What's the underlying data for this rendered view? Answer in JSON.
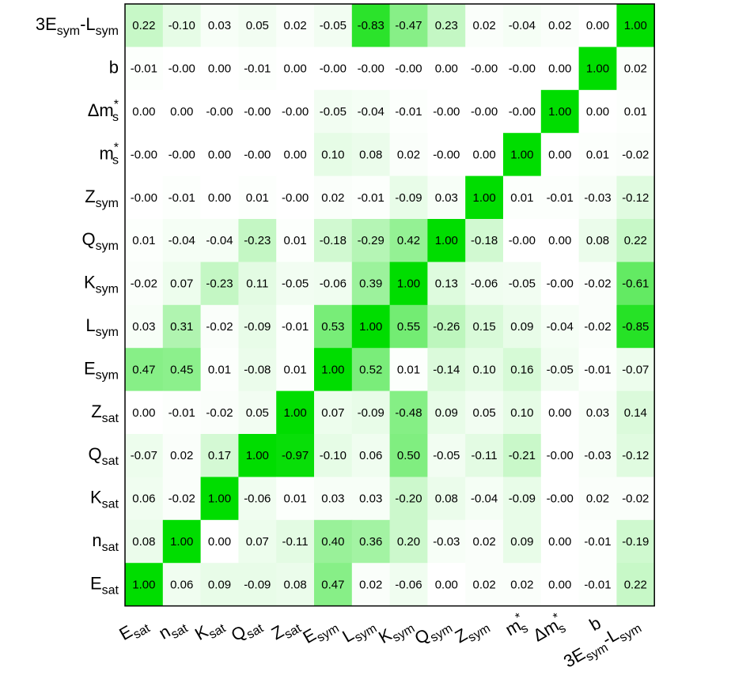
{
  "chart_data": {
    "type": "heatmap",
    "title": "",
    "xlabel": "",
    "ylabel": "",
    "colors": {
      "low": "#ffffff",
      "high": "#00dd00",
      "text": "#000000",
      "frame": "#000000"
    },
    "value_format": "two-decimals",
    "x_labels": [
      {
        "base": "E",
        "sub": "sat"
      },
      {
        "base": "n",
        "sub": "sat"
      },
      {
        "base": "K",
        "sub": "sat"
      },
      {
        "base": "Q",
        "sub": "sat"
      },
      {
        "base": "Z",
        "sub": "sat"
      },
      {
        "base": "E",
        "sub": "sym"
      },
      {
        "base": "L",
        "sub": "sym"
      },
      {
        "base": "K",
        "sub": "sym"
      },
      {
        "base": "Q",
        "sub": "sym"
      },
      {
        "base": "Z",
        "sub": "sym"
      },
      {
        "base": "m",
        "sub": "s",
        "sup": "*"
      },
      {
        "base": "Δm",
        "sub": "s",
        "sup": "*"
      },
      {
        "base": "b"
      },
      {
        "parts": [
          [
            "3E",
            ""
          ],
          [
            "sym",
            "sub"
          ],
          [
            "-L",
            ""
          ],
          [
            "sym",
            "sub"
          ]
        ]
      }
    ],
    "y_labels": [
      {
        "base": "E",
        "sub": "sat"
      },
      {
        "base": "n",
        "sub": "sat"
      },
      {
        "base": "K",
        "sub": "sat"
      },
      {
        "base": "Q",
        "sub": "sat"
      },
      {
        "base": "Z",
        "sub": "sat"
      },
      {
        "base": "E",
        "sub": "sym"
      },
      {
        "base": "L",
        "sub": "sym"
      },
      {
        "base": "K",
        "sub": "sym"
      },
      {
        "base": "Q",
        "sub": "sym"
      },
      {
        "base": "Z",
        "sub": "sym"
      },
      {
        "base": "m",
        "sub": "s",
        "sup": "*"
      },
      {
        "base": "Δm",
        "sub": "s",
        "sup": "*"
      },
      {
        "base": "b"
      },
      {
        "parts": [
          [
            "3E",
            ""
          ],
          [
            "sym",
            "sub"
          ],
          [
            "-L",
            ""
          ],
          [
            "sym",
            "sub"
          ]
        ]
      }
    ],
    "rows": [
      {
        "y": "3Esym-Lsym",
        "values": [
          "0.22",
          "-0.10",
          "0.03",
          "0.05",
          "0.02",
          "-0.05",
          "-0.83",
          "-0.47",
          "0.23",
          "0.02",
          "-0.04",
          "0.02",
          "0.00",
          "1.00"
        ]
      },
      {
        "y": "b",
        "values": [
          "-0.01",
          "-0.00",
          "0.00",
          "-0.01",
          "0.00",
          "-0.00",
          "-0.00",
          "-0.00",
          "0.00",
          "-0.00",
          "-0.00",
          "0.00",
          "1.00",
          "0.02"
        ]
      },
      {
        "y": "Δm*s",
        "values": [
          "0.00",
          "0.00",
          "-0.00",
          "-0.00",
          "-0.00",
          "-0.05",
          "-0.04",
          "-0.01",
          "-0.00",
          "-0.00",
          "-0.00",
          "1.00",
          "0.00",
          "0.01"
        ]
      },
      {
        "y": "m*s",
        "values": [
          "-0.00",
          "-0.00",
          "0.00",
          "-0.00",
          "0.00",
          "0.10",
          "0.08",
          "0.02",
          "-0.00",
          "0.00",
          "1.00",
          "0.00",
          "0.01",
          "-0.02"
        ]
      },
      {
        "y": "Zsym",
        "values": [
          "-0.00",
          "-0.01",
          "0.00",
          "0.01",
          "-0.00",
          "0.02",
          "-0.01",
          "-0.09",
          "0.03",
          "1.00",
          "0.01",
          "-0.01",
          "-0.03",
          "-0.12"
        ]
      },
      {
        "y": "Qsym",
        "values": [
          "0.01",
          "-0.04",
          "-0.04",
          "-0.23",
          "0.01",
          "-0.18",
          "-0.29",
          "0.42",
          "1.00",
          "-0.18",
          "-0.00",
          "0.00",
          "0.08",
          "0.22"
        ]
      },
      {
        "y": "Ksym",
        "values": [
          "-0.02",
          "0.07",
          "-0.23",
          "0.11",
          "-0.05",
          "-0.06",
          "0.39",
          "1.00",
          "0.13",
          "-0.06",
          "-0.05",
          "-0.00",
          "-0.02",
          "-0.61"
        ]
      },
      {
        "y": "Lsym",
        "values": [
          "0.03",
          "0.31",
          "-0.02",
          "-0.09",
          "-0.01",
          "0.53",
          "1.00",
          "0.55",
          "-0.26",
          "0.15",
          "0.09",
          "-0.04",
          "-0.02",
          "-0.85"
        ]
      },
      {
        "y": "Esym",
        "values": [
          "0.47",
          "0.45",
          "0.01",
          "-0.08",
          "0.01",
          "1.00",
          "0.52",
          "0.01",
          "-0.14",
          "0.10",
          "0.16",
          "-0.05",
          "-0.01",
          "-0.07"
        ]
      },
      {
        "y": "Zsat",
        "values": [
          "0.00",
          "-0.01",
          "-0.02",
          "0.05",
          "1.00",
          "0.07",
          "-0.09",
          "-0.48",
          "0.09",
          "0.05",
          "0.10",
          "0.00",
          "0.03",
          "0.14"
        ]
      },
      {
        "y": "Qsat",
        "values": [
          "-0.07",
          "0.02",
          "0.17",
          "1.00",
          "-0.97",
          "-0.10",
          "0.06",
          "0.50",
          "-0.05",
          "-0.11",
          "-0.21",
          "-0.00",
          "-0.03",
          "-0.12"
        ]
      },
      {
        "y": "Ksat",
        "values": [
          "0.06",
          "-0.02",
          "1.00",
          "-0.06",
          "0.01",
          "0.03",
          "0.03",
          "-0.20",
          "0.08",
          "-0.04",
          "-0.09",
          "-0.00",
          "0.02",
          "-0.02"
        ]
      },
      {
        "y": "nsat",
        "values": [
          "0.08",
          "1.00",
          "0.00",
          "0.07",
          "-0.11",
          "0.40",
          "0.36",
          "0.20",
          "-0.03",
          "0.02",
          "0.09",
          "0.00",
          "-0.01",
          "-0.19"
        ]
      },
      {
        "y": "Esat",
        "values": [
          "1.00",
          "0.06",
          "0.09",
          "-0.09",
          "0.08",
          "0.47",
          "0.02",
          "-0.06",
          "0.00",
          "0.02",
          "0.02",
          "0.00",
          "-0.01",
          "0.22"
        ]
      }
    ],
    "grid": false,
    "legend": "none"
  }
}
